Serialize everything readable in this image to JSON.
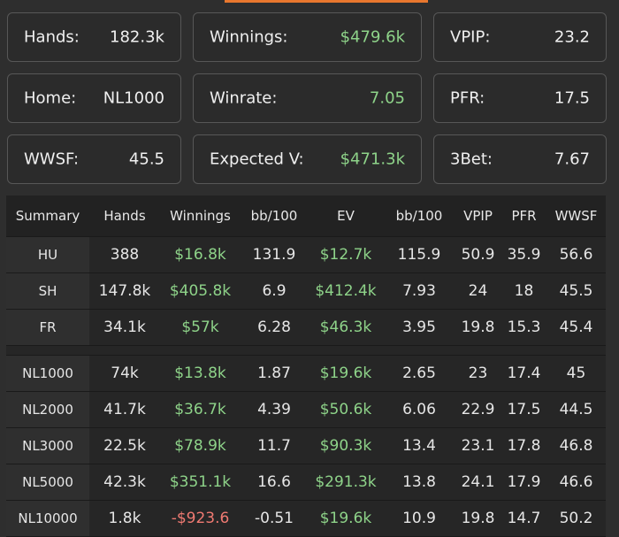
{
  "cards": [
    {
      "label": "Hands:",
      "value": "182.3k",
      "color": "#f0f0f0"
    },
    {
      "label": "Winnings:",
      "value": "$479.6k",
      "color": "#8ed389"
    },
    {
      "label": "VPIP:",
      "value": "23.2",
      "color": "#f0f0f0"
    },
    {
      "label": "Home:",
      "value": "NL1000",
      "color": "#f0f0f0"
    },
    {
      "label": "Winrate:",
      "value": "7.05",
      "color": "#8ed389"
    },
    {
      "label": "PFR:",
      "value": "17.5",
      "color": "#f0f0f0"
    },
    {
      "label": "WWSF:",
      "value": "45.5",
      "color": "#f0f0f0"
    },
    {
      "label": "Expected V:",
      "value": "$471.3k",
      "color": "#8ed389"
    },
    {
      "label": "3Bet:",
      "value": "7.67",
      "color": "#f0f0f0"
    }
  ],
  "table": {
    "headers": [
      "Summary",
      "Hands",
      "Winnings",
      "bb/100",
      "EV",
      "bb/100",
      "VPIP",
      "PFR",
      "WWSF"
    ],
    "group1": [
      {
        "cells": [
          "HU",
          "388",
          "$16.8k",
          "131.9",
          "$12.7k",
          "115.9",
          "50.9",
          "35.9",
          "56.6"
        ],
        "status": [
          "",
          "",
          "pos",
          "",
          "pos",
          "",
          "",
          "",
          ""
        ]
      },
      {
        "cells": [
          "SH",
          "147.8k",
          "$405.8k",
          "6.9",
          "$412.4k",
          "7.93",
          "24",
          "18",
          "45.5"
        ],
        "status": [
          "",
          "",
          "pos",
          "",
          "pos",
          "",
          "",
          "",
          ""
        ]
      },
      {
        "cells": [
          "FR",
          "34.1k",
          "$57k",
          "6.28",
          "$46.3k",
          "3.95",
          "19.8",
          "15.3",
          "45.4"
        ],
        "status": [
          "",
          "",
          "pos",
          "",
          "pos",
          "",
          "",
          "",
          ""
        ]
      }
    ],
    "group2": [
      {
        "cells": [
          "NL1000",
          "74k",
          "$13.8k",
          "1.87",
          "$19.6k",
          "2.65",
          "23",
          "17.4",
          "45"
        ],
        "status": [
          "",
          "",
          "pos",
          "",
          "pos",
          "",
          "",
          "",
          ""
        ]
      },
      {
        "cells": [
          "NL2000",
          "41.7k",
          "$36.7k",
          "4.39",
          "$50.6k",
          "6.06",
          "22.9",
          "17.5",
          "44.5"
        ],
        "status": [
          "",
          "",
          "pos",
          "",
          "pos",
          "",
          "",
          "",
          ""
        ]
      },
      {
        "cells": [
          "NL3000",
          "22.5k",
          "$78.9k",
          "11.7",
          "$90.3k",
          "13.4",
          "23.1",
          "17.8",
          "46.8"
        ],
        "status": [
          "",
          "",
          "pos",
          "",
          "pos",
          "",
          "",
          "",
          ""
        ]
      },
      {
        "cells": [
          "NL5000",
          "42.3k",
          "$351.1k",
          "16.6",
          "$291.3k",
          "13.8",
          "24.1",
          "17.9",
          "46.6"
        ],
        "status": [
          "",
          "",
          "pos",
          "",
          "pos",
          "",
          "",
          "",
          ""
        ]
      },
      {
        "cells": [
          "NL10000",
          "1.8k",
          "-$923.6",
          "-0.51",
          "$19.6k",
          "10.9",
          "19.8",
          "14.7",
          "50.2"
        ],
        "status": [
          "",
          "",
          "neg",
          "",
          "pos",
          "",
          "",
          "",
          ""
        ]
      }
    ]
  }
}
